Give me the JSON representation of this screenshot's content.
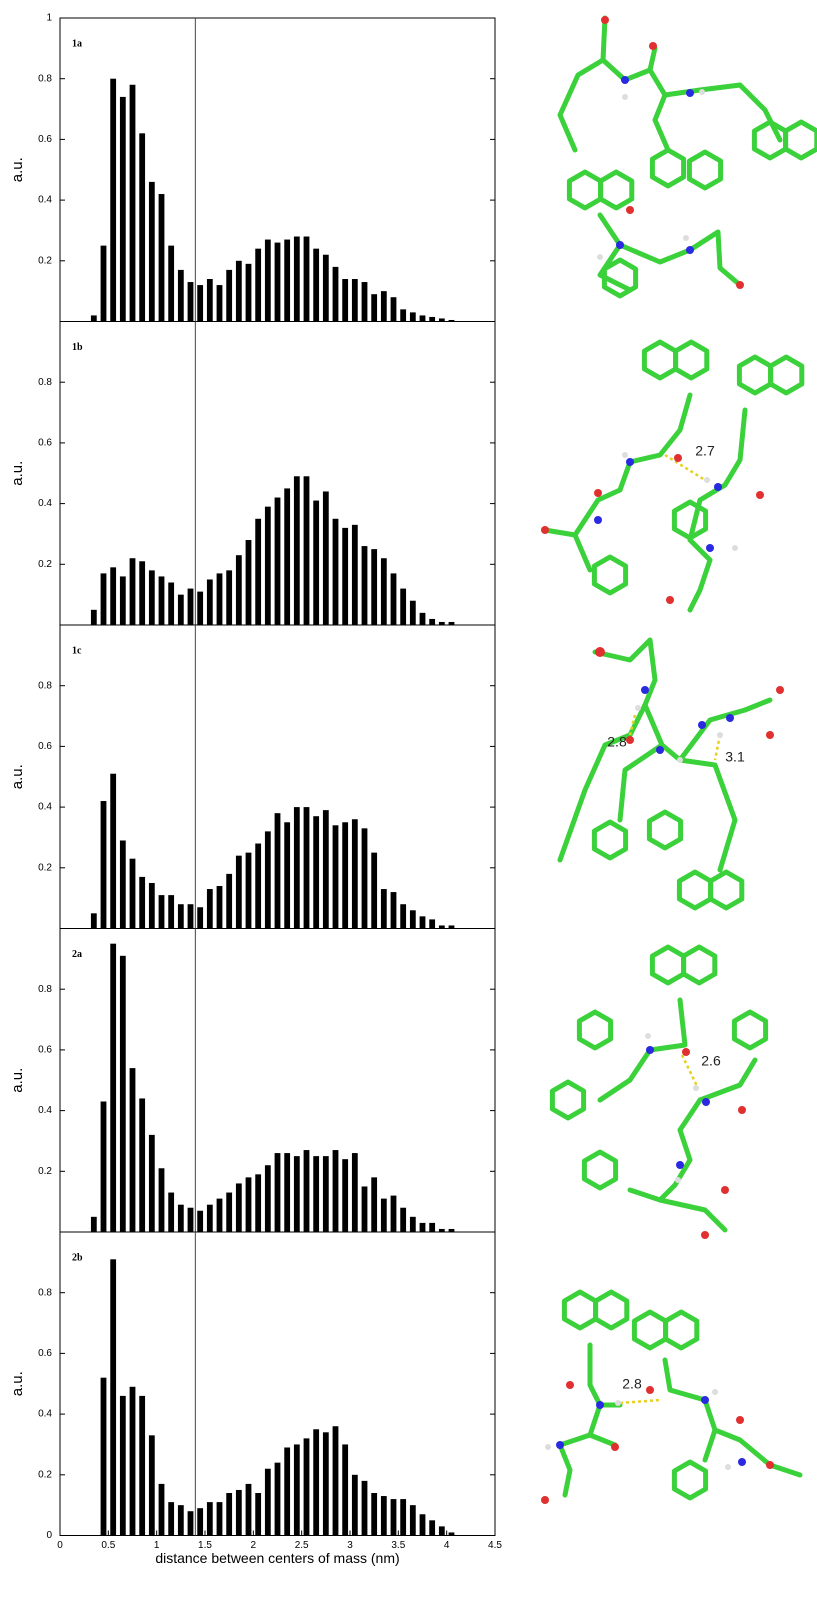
{
  "chart_data": [
    {
      "type": "bar",
      "title": "1a",
      "ylabel": "a.u.",
      "xlim": [
        0,
        4.5
      ],
      "ylim": [
        0,
        1
      ],
      "yticks": [
        0.2,
        0.4,
        0.6,
        0.8,
        1
      ],
      "vline": 1.4,
      "color": "#000000",
      "x": [
        0.35,
        0.45,
        0.55,
        0.65,
        0.75,
        0.85,
        0.95,
        1.05,
        1.15,
        1.25,
        1.35,
        1.45,
        1.55,
        1.65,
        1.75,
        1.85,
        1.95,
        2.05,
        2.15,
        2.25,
        2.35,
        2.45,
        2.55,
        2.65,
        2.75,
        2.85,
        2.95,
        3.05,
        3.15,
        3.25,
        3.35,
        3.45,
        3.55,
        3.65,
        3.75,
        3.85,
        3.95,
        4.05,
        4.15
      ],
      "values": [
        0.02,
        0.25,
        0.8,
        0.74,
        0.78,
        0.62,
        0.46,
        0.42,
        0.25,
        0.17,
        0.13,
        0.12,
        0.14,
        0.12,
        0.17,
        0.2,
        0.19,
        0.24,
        0.27,
        0.26,
        0.27,
        0.28,
        0.28,
        0.24,
        0.22,
        0.18,
        0.14,
        0.14,
        0.13,
        0.09,
        0.1,
        0.08,
        0.04,
        0.03,
        0.02,
        0.015,
        0.01,
        0.005,
        0
      ]
    },
    {
      "type": "bar",
      "title": "1b",
      "ylabel": "a.u.",
      "xlim": [
        0,
        4.5
      ],
      "ylim": [
        0,
        1
      ],
      "yticks": [
        0.2,
        0.4,
        0.6,
        0.8
      ],
      "vline": 1.4,
      "color": "#000000",
      "annotations": [
        "2.7"
      ],
      "x": [
        0.35,
        0.45,
        0.55,
        0.65,
        0.75,
        0.85,
        0.95,
        1.05,
        1.15,
        1.25,
        1.35,
        1.45,
        1.55,
        1.65,
        1.75,
        1.85,
        1.95,
        2.05,
        2.15,
        2.25,
        2.35,
        2.45,
        2.55,
        2.65,
        2.75,
        2.85,
        2.95,
        3.05,
        3.15,
        3.25,
        3.35,
        3.45,
        3.55,
        3.65,
        3.75,
        3.85,
        3.95,
        4.05,
        4.15
      ],
      "values": [
        0.05,
        0.17,
        0.19,
        0.16,
        0.22,
        0.21,
        0.18,
        0.16,
        0.14,
        0.1,
        0.12,
        0.11,
        0.15,
        0.17,
        0.18,
        0.23,
        0.28,
        0.35,
        0.39,
        0.42,
        0.45,
        0.49,
        0.49,
        0.41,
        0.44,
        0.35,
        0.32,
        0.33,
        0.26,
        0.25,
        0.22,
        0.17,
        0.12,
        0.08,
        0.04,
        0.02,
        0.01,
        0.01,
        0
      ]
    },
    {
      "type": "bar",
      "title": "1c",
      "ylabel": "a.u.",
      "xlim": [
        0,
        4.5
      ],
      "ylim": [
        0,
        1
      ],
      "yticks": [
        0.2,
        0.4,
        0.6,
        0.8
      ],
      "vline": 1.4,
      "color": "#000000",
      "annotations": [
        "2.8",
        "3.1"
      ],
      "x": [
        0.35,
        0.45,
        0.55,
        0.65,
        0.75,
        0.85,
        0.95,
        1.05,
        1.15,
        1.25,
        1.35,
        1.45,
        1.55,
        1.65,
        1.75,
        1.85,
        1.95,
        2.05,
        2.15,
        2.25,
        2.35,
        2.45,
        2.55,
        2.65,
        2.75,
        2.85,
        2.95,
        3.05,
        3.15,
        3.25,
        3.35,
        3.45,
        3.55,
        3.65,
        3.75,
        3.85,
        3.95,
        4.05,
        4.15
      ],
      "values": [
        0.05,
        0.42,
        0.51,
        0.29,
        0.23,
        0.17,
        0.15,
        0.11,
        0.11,
        0.08,
        0.08,
        0.07,
        0.13,
        0.14,
        0.18,
        0.24,
        0.25,
        0.28,
        0.32,
        0.38,
        0.35,
        0.4,
        0.4,
        0.37,
        0.39,
        0.34,
        0.35,
        0.36,
        0.33,
        0.25,
        0.13,
        0.12,
        0.08,
        0.06,
        0.04,
        0.03,
        0.01,
        0.01,
        0
      ]
    },
    {
      "type": "bar",
      "title": "2a",
      "ylabel": "a.u.",
      "xlim": [
        0,
        4.5
      ],
      "ylim": [
        0,
        1
      ],
      "yticks": [
        0.2,
        0.4,
        0.6,
        0.8
      ],
      "vline": 1.4,
      "color": "#000000",
      "annotations": [
        "2.6"
      ],
      "x": [
        0.35,
        0.45,
        0.55,
        0.65,
        0.75,
        0.85,
        0.95,
        1.05,
        1.15,
        1.25,
        1.35,
        1.45,
        1.55,
        1.65,
        1.75,
        1.85,
        1.95,
        2.05,
        2.15,
        2.25,
        2.35,
        2.45,
        2.55,
        2.65,
        2.75,
        2.85,
        2.95,
        3.05,
        3.15,
        3.25,
        3.35,
        3.45,
        3.55,
        3.65,
        3.75,
        3.85,
        3.95,
        4.05,
        4.15
      ],
      "values": [
        0.05,
        0.43,
        0.95,
        0.91,
        0.54,
        0.44,
        0.32,
        0.21,
        0.13,
        0.09,
        0.08,
        0.07,
        0.09,
        0.11,
        0.13,
        0.16,
        0.18,
        0.19,
        0.22,
        0.26,
        0.26,
        0.25,
        0.27,
        0.25,
        0.25,
        0.27,
        0.24,
        0.26,
        0.15,
        0.18,
        0.11,
        0.12,
        0.08,
        0.05,
        0.03,
        0.03,
        0.01,
        0.01,
        0
      ]
    },
    {
      "type": "bar",
      "title": "2b",
      "ylabel": "a.u.",
      "xlabel": "distance between centers of mass (nm)",
      "xlim": [
        0,
        4.5
      ],
      "ylim": [
        0,
        1
      ],
      "yticks": [
        0,
        0.2,
        0.4,
        0.6,
        0.8
      ],
      "xticks": [
        0,
        0.5,
        1,
        1.5,
        2,
        2.5,
        3,
        3.5,
        4,
        4.5
      ],
      "vline": 1.4,
      "color": "#000000",
      "annotations": [
        "2.8"
      ],
      "x": [
        0.35,
        0.45,
        0.55,
        0.65,
        0.75,
        0.85,
        0.95,
        1.05,
        1.15,
        1.25,
        1.35,
        1.45,
        1.55,
        1.65,
        1.75,
        1.85,
        1.95,
        2.05,
        2.15,
        2.25,
        2.35,
        2.45,
        2.55,
        2.65,
        2.75,
        2.85,
        2.95,
        3.05,
        3.15,
        3.25,
        3.35,
        3.45,
        3.55,
        3.65,
        3.75,
        3.85,
        3.95,
        4.05,
        4.15
      ],
      "values": [
        0,
        0.52,
        0.91,
        0.46,
        0.49,
        0.46,
        0.33,
        0.17,
        0.11,
        0.1,
        0.08,
        0.09,
        0.11,
        0.11,
        0.14,
        0.15,
        0.17,
        0.14,
        0.22,
        0.24,
        0.29,
        0.3,
        0.32,
        0.35,
        0.34,
        0.36,
        0.3,
        0.2,
        0.18,
        0.14,
        0.13,
        0.12,
        0.12,
        0.1,
        0.07,
        0.05,
        0.03,
        0.01,
        0
      ]
    }
  ]
}
